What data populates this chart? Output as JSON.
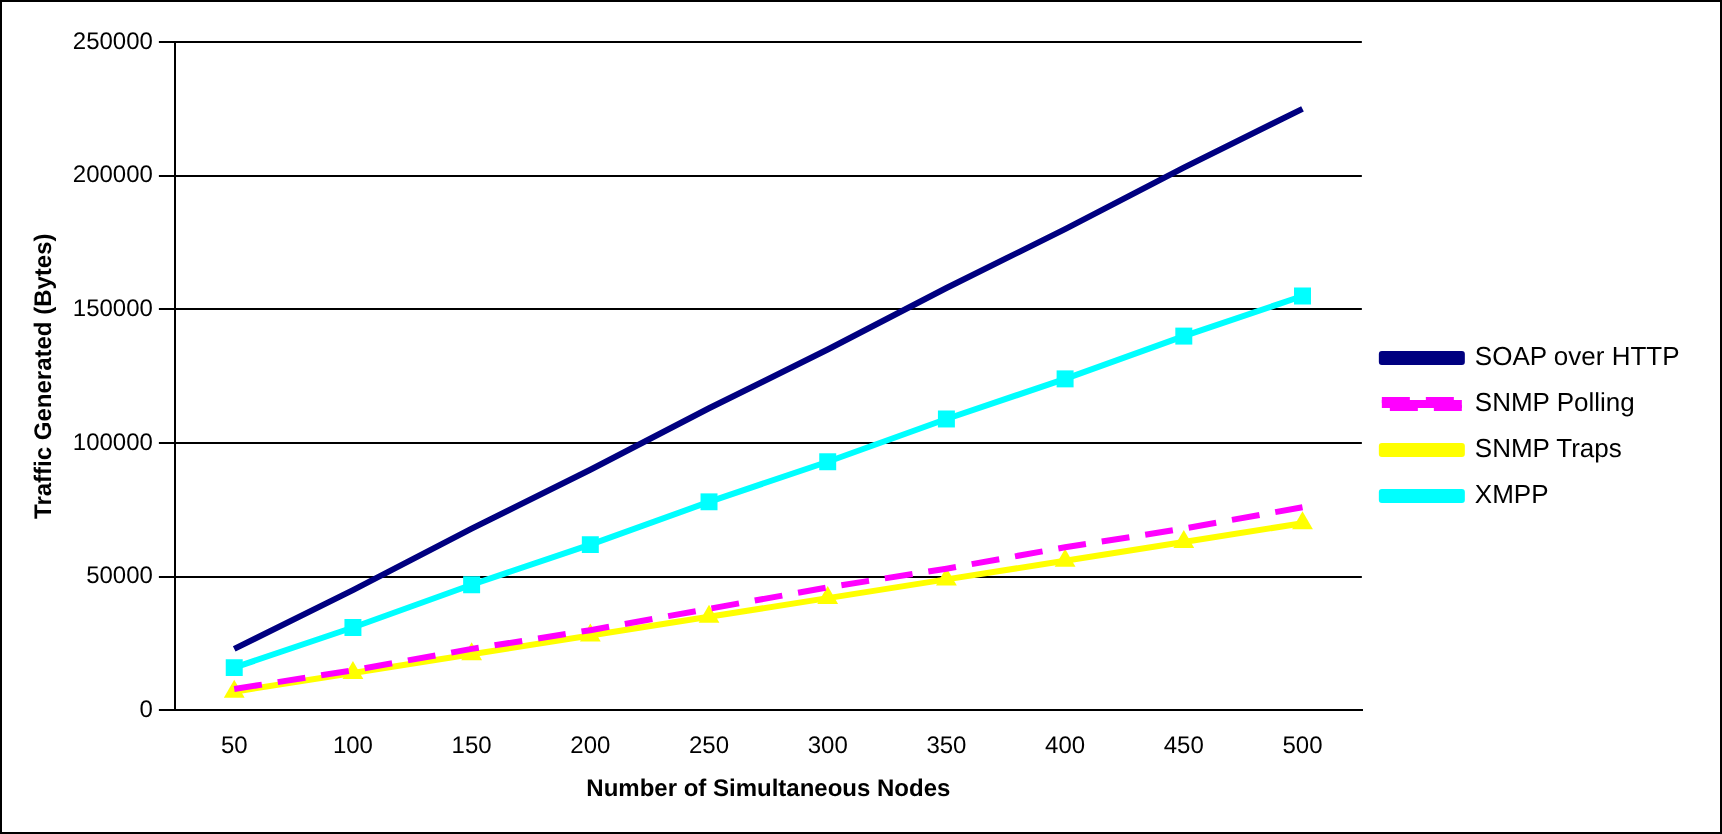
{
  "chart_data": {
    "type": "line",
    "xlabel": "Number of Simultaneous Nodes",
    "ylabel": "Traffic Generated (Bytes)",
    "categories": [
      "50",
      "100",
      "150",
      "200",
      "250",
      "300",
      "350",
      "400",
      "450",
      "500"
    ],
    "series": [
      {
        "name": "SOAP over HTTP",
        "color": "#000080",
        "marker": "none",
        "line_style": "solid",
        "values": [
          23000,
          45000,
          68000,
          90000,
          113000,
          135000,
          158000,
          180000,
          203000,
          225000
        ]
      },
      {
        "name": "SNMP Polling",
        "color": "#ff00ff",
        "marker": "none",
        "line_style": "dashed",
        "values": [
          8000,
          15000,
          23000,
          30000,
          38000,
          46000,
          53000,
          61000,
          68000,
          76000
        ]
      },
      {
        "name": "SNMP Traps",
        "color": "#ffff00",
        "marker": "triangle",
        "line_style": "solid",
        "values": [
          7000,
          14000,
          21000,
          28000,
          35000,
          42000,
          49000,
          56000,
          63000,
          70000
        ]
      },
      {
        "name": "XMPP",
        "color": "#00ffff",
        "marker": "square",
        "line_style": "solid",
        "values": [
          16000,
          31000,
          47000,
          62000,
          78000,
          93000,
          109000,
          124000,
          140000,
          155000
        ]
      }
    ],
    "ylim": [
      0,
      250000
    ],
    "yticks": [
      0,
      50000,
      100000,
      150000,
      200000,
      250000
    ],
    "grid": "y",
    "legend": "right"
  }
}
